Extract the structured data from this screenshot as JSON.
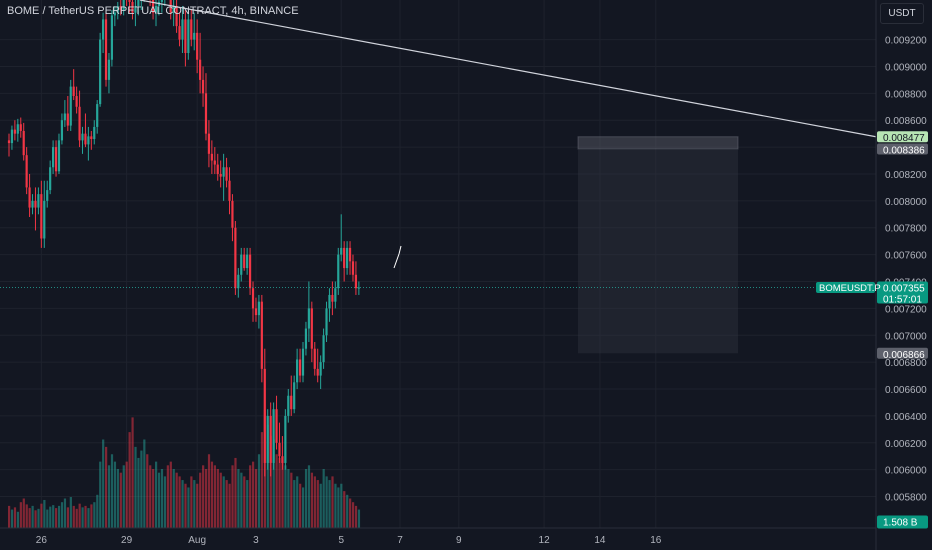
{
  "header": {
    "title": "BOME / TetherUS PERPETUAL CONTRACT, 4h, BINANCE",
    "currency": "USDT"
  },
  "colors": {
    "background": "#131722",
    "up": "#26a69a",
    "down": "#f23645",
    "grid": "#1e222d",
    "text": "#b2b5be",
    "trendline": "#d1d4dc",
    "tag_green": "#089981",
    "tag_gray": "#5d606b",
    "tag_light_green": "#b7e5b4"
  },
  "tags": {
    "symbol": "BOMEUSDT.P",
    "last_price": "0.007355",
    "countdown": "01:57:01",
    "trend_price": "0.008477",
    "target_price": "0.008386",
    "stop_price": "0.006866",
    "volume": "1.508 B"
  },
  "chart_data": {
    "type": "candlestick",
    "title": "BOME / TetherUS PERPETUAL CONTRACT, 4h, BINANCE",
    "y_axis": {
      "side": "right",
      "range": [
        0.0057,
        0.00942
      ],
      "ticks": [
        "0.009200",
        "0.009000",
        "0.008800",
        "0.008600",
        "0.008400",
        "0.008200",
        "0.008000",
        "0.007800",
        "0.007600",
        "0.007400",
        "0.007200",
        "0.007000",
        "0.006800",
        "0.006600",
        "0.006400",
        "0.006200",
        "0.006000",
        "0.005800"
      ]
    },
    "x_axis": {
      "ticks": [
        {
          "label": "26",
          "bar": 11
        },
        {
          "label": "29",
          "bar": 40
        },
        {
          "label": "Aug",
          "bar": 64
        },
        {
          "label": "3",
          "bar": 84
        },
        {
          "label": "5",
          "bar": 113
        },
        {
          "label": "7",
          "bar": 133
        },
        {
          "label": "9",
          "bar": 153
        },
        {
          "label": "12",
          "bar": 182
        },
        {
          "label": "14",
          "bar": 201
        },
        {
          "label": "16",
          "bar": 220
        }
      ]
    },
    "ohlc": [
      [
        0.00845,
        0.0085,
        0.00833,
        0.00843
      ],
      [
        0.00843,
        0.00856,
        0.00838,
        0.00853
      ],
      [
        0.00853,
        0.0086,
        0.00845,
        0.0085
      ],
      [
        0.0085,
        0.00861,
        0.00844,
        0.00857
      ],
      [
        0.00857,
        0.00862,
        0.00847,
        0.00852
      ],
      [
        0.00852,
        0.00858,
        0.0083,
        0.00834
      ],
      [
        0.00834,
        0.0084,
        0.00805,
        0.0081
      ],
      [
        0.0081,
        0.0082,
        0.00788,
        0.00795
      ],
      [
        0.00795,
        0.00805,
        0.0079,
        0.008
      ],
      [
        0.008,
        0.0081,
        0.00778,
        0.00795
      ],
      [
        0.00795,
        0.0081,
        0.0079,
        0.00805
      ],
      [
        0.00805,
        0.00815,
        0.00765,
        0.00772
      ],
      [
        0.00772,
        0.00815,
        0.00765,
        0.008
      ],
      [
        0.008,
        0.00815,
        0.00795,
        0.00808
      ],
      [
        0.00808,
        0.0083,
        0.00805,
        0.00825
      ],
      [
        0.00825,
        0.00845,
        0.0082,
        0.0084
      ],
      [
        0.0084,
        0.00845,
        0.00818,
        0.00822
      ],
      [
        0.00822,
        0.0085,
        0.0082,
        0.00845
      ],
      [
        0.00845,
        0.00865,
        0.00842,
        0.0086
      ],
      [
        0.0086,
        0.00875,
        0.00855,
        0.00865
      ],
      [
        0.00865,
        0.00878,
        0.00852,
        0.00856
      ],
      [
        0.00856,
        0.0089,
        0.00852,
        0.00885
      ],
      [
        0.00885,
        0.00898,
        0.00875,
        0.00878
      ],
      [
        0.00878,
        0.00885,
        0.00865,
        0.0087
      ],
      [
        0.0087,
        0.00882,
        0.0084,
        0.00845
      ],
      [
        0.00845,
        0.00855,
        0.00835,
        0.0085
      ],
      [
        0.0085,
        0.00865,
        0.0084,
        0.00842
      ],
      [
        0.00842,
        0.00855,
        0.0083,
        0.00848
      ],
      [
        0.00848,
        0.00852,
        0.00838,
        0.00846
      ],
      [
        0.00846,
        0.0086,
        0.00842,
        0.00855
      ],
      [
        0.00855,
        0.00875,
        0.0085,
        0.00872
      ],
      [
        0.00872,
        0.00925,
        0.0087,
        0.0092
      ],
      [
        0.0092,
        0.0094,
        0.0091,
        0.00935
      ],
      [
        0.00935,
        0.00942,
        0.00885,
        0.0089
      ],
      [
        0.0089,
        0.0091,
        0.0088,
        0.00905
      ],
      [
        0.00905,
        0.00942,
        0.009,
        0.00938
      ],
      [
        0.00938,
        0.00945,
        0.0093,
        0.0094
      ],
      [
        0.0094,
        0.00948,
        0.00935,
        0.00945
      ],
      [
        0.00945,
        0.0095,
        0.00938,
        0.00942
      ],
      [
        0.00942,
        0.0096,
        0.00938,
        0.00955
      ],
      [
        0.00955,
        0.00965,
        0.00945,
        0.0095
      ],
      [
        0.0095,
        0.0096,
        0.0094,
        0.00948
      ],
      [
        0.00948,
        0.00955,
        0.00935,
        0.0094
      ],
      [
        0.0094,
        0.0095,
        0.0093,
        0.00945
      ],
      [
        0.00945,
        0.00955,
        0.00938,
        0.0095
      ],
      [
        0.0095,
        0.0096,
        0.00942,
        0.00955
      ],
      [
        0.00955,
        0.00965,
        0.00948,
        0.0096
      ],
      [
        0.0096,
        0.0097,
        0.0095,
        0.00955
      ],
      [
        0.00955,
        0.00965,
        0.00945,
        0.0095
      ],
      [
        0.0095,
        0.00958,
        0.00935,
        0.0094
      ],
      [
        0.0094,
        0.0095,
        0.0093,
        0.00945
      ],
      [
        0.00945,
        0.00955,
        0.00938,
        0.00948
      ],
      [
        0.00948,
        0.0096,
        0.0094,
        0.00952
      ],
      [
        0.00952,
        0.00965,
        0.00945,
        0.0096
      ],
      [
        0.0096,
        0.0097,
        0.0095,
        0.00955
      ],
      [
        0.00955,
        0.0096,
        0.00935,
        0.0094
      ],
      [
        0.0094,
        0.0095,
        0.0093,
        0.00945
      ],
      [
        0.00945,
        0.00955,
        0.00925,
        0.0093
      ],
      [
        0.0093,
        0.0094,
        0.00915,
        0.0092
      ],
      [
        0.0092,
        0.00945,
        0.0091,
        0.00935
      ],
      [
        0.00935,
        0.00942,
        0.009,
        0.0091
      ],
      [
        0.0091,
        0.00942,
        0.00905,
        0.00935
      ],
      [
        0.00935,
        0.00942,
        0.00915,
        0.0092
      ],
      [
        0.0092,
        0.0094,
        0.00912,
        0.00925
      ],
      [
        0.00925,
        0.00935,
        0.00895,
        0.00905
      ],
      [
        0.00905,
        0.00925,
        0.0088,
        0.0089
      ],
      [
        0.0089,
        0.009,
        0.0087,
        0.0088
      ],
      [
        0.0088,
        0.00895,
        0.00845,
        0.0085
      ],
      [
        0.0085,
        0.0086,
        0.00825,
        0.00835
      ],
      [
        0.00835,
        0.00845,
        0.0082,
        0.0083
      ],
      [
        0.0083,
        0.0084,
        0.0082,
        0.00827
      ],
      [
        0.00827,
        0.00835,
        0.00815,
        0.0082
      ],
      [
        0.0082,
        0.0083,
        0.0081,
        0.00818
      ],
      [
        0.00818,
        0.00835,
        0.008,
        0.00825
      ],
      [
        0.00825,
        0.00832,
        0.0081,
        0.00815
      ],
      [
        0.00815,
        0.00825,
        0.0079,
        0.008
      ],
      [
        0.008,
        0.00805,
        0.0077,
        0.0078
      ],
      [
        0.0078,
        0.00785,
        0.0073,
        0.00735
      ],
      [
        0.00735,
        0.0075,
        0.00728,
        0.00745
      ],
      [
        0.00745,
        0.00765,
        0.0074,
        0.0076
      ],
      [
        0.0076,
        0.00765,
        0.00748,
        0.0075
      ],
      [
        0.0075,
        0.00765,
        0.00745,
        0.0076
      ],
      [
        0.0076,
        0.00765,
        0.0073,
        0.00735
      ],
      [
        0.00735,
        0.0074,
        0.0071,
        0.0072
      ],
      [
        0.0072,
        0.00728,
        0.0071,
        0.00715
      ],
      [
        0.00715,
        0.0073,
        0.00705,
        0.00725
      ],
      [
        0.00725,
        0.0073,
        0.00665,
        0.00675
      ],
      [
        0.00675,
        0.0069,
        0.00595,
        0.00605
      ],
      [
        0.00605,
        0.00645,
        0.006,
        0.0064
      ],
      [
        0.0064,
        0.0065,
        0.00595,
        0.00605
      ],
      [
        0.00605,
        0.0065,
        0.006,
        0.00645
      ],
      [
        0.00645,
        0.00655,
        0.00615,
        0.0062
      ],
      [
        0.0062,
        0.00635,
        0.00605,
        0.0061
      ],
      [
        0.0061,
        0.00625,
        0.006,
        0.00605
      ],
      [
        0.00605,
        0.00645,
        0.006,
        0.0064
      ],
      [
        0.0064,
        0.0066,
        0.00635,
        0.00655
      ],
      [
        0.00655,
        0.0067,
        0.0064,
        0.00645
      ],
      [
        0.00645,
        0.0067,
        0.00642,
        0.00665
      ],
      [
        0.00665,
        0.0069,
        0.0066,
        0.00682
      ],
      [
        0.00682,
        0.0069,
        0.00665,
        0.0067
      ],
      [
        0.0067,
        0.00695,
        0.00665,
        0.0069
      ],
      [
        0.0069,
        0.0071,
        0.00685,
        0.00705
      ],
      [
        0.00705,
        0.0074,
        0.00695,
        0.0072
      ],
      [
        0.0072,
        0.00725,
        0.0068,
        0.0069
      ],
      [
        0.0069,
        0.00695,
        0.0067,
        0.00675
      ],
      [
        0.00675,
        0.0069,
        0.00665,
        0.0067
      ],
      [
        0.0067,
        0.00685,
        0.0066,
        0.0068
      ],
      [
        0.0068,
        0.00705,
        0.00675,
        0.007
      ],
      [
        0.007,
        0.00725,
        0.00695,
        0.0072
      ],
      [
        0.0072,
        0.00735,
        0.0071,
        0.0073
      ],
      [
        0.0073,
        0.0074,
        0.00715,
        0.00725
      ],
      [
        0.00725,
        0.0074,
        0.0072,
        0.00735
      ],
      [
        0.00735,
        0.00765,
        0.0073,
        0.0076
      ],
      [
        0.0076,
        0.0079,
        0.00755,
        0.00765
      ],
      [
        0.00765,
        0.0077,
        0.0074,
        0.0075
      ],
      [
        0.0075,
        0.0077,
        0.00745,
        0.00765
      ],
      [
        0.00765,
        0.0077,
        0.00745,
        0.00755
      ],
      [
        0.00755,
        0.0076,
        0.0074,
        0.00745
      ],
      [
        0.00745,
        0.00755,
        0.0073,
        0.00735
      ],
      [
        0.00735,
        0.0074,
        0.0073,
        0.007355
      ]
    ],
    "volume": [
      0.3,
      0.25,
      0.28,
      0.22,
      0.35,
      0.4,
      0.32,
      0.27,
      0.3,
      0.24,
      0.26,
      0.33,
      0.38,
      0.25,
      0.29,
      0.31,
      0.27,
      0.3,
      0.35,
      0.4,
      0.28,
      0.42,
      0.3,
      0.26,
      0.33,
      0.28,
      0.3,
      0.27,
      0.32,
      0.35,
      0.45,
      0.9,
      1.2,
      1.1,
      0.85,
      1.0,
      0.9,
      0.8,
      0.75,
      0.85,
      0.9,
      1.3,
      1.5,
      1.1,
      0.95,
      1.05,
      1.2,
      1.0,
      0.85,
      0.8,
      0.9,
      0.75,
      0.8,
      0.7,
      0.85,
      0.9,
      0.8,
      0.75,
      0.7,
      0.65,
      0.6,
      0.55,
      0.7,
      0.65,
      0.6,
      0.75,
      0.85,
      0.8,
      1.0,
      0.9,
      0.85,
      0.8,
      0.75,
      0.7,
      0.65,
      0.6,
      0.85,
      0.95,
      0.8,
      0.75,
      0.7,
      0.65,
      0.85,
      0.9,
      0.8,
      1.0,
      1.3,
      1.6,
      1.4,
      1.25,
      1.2,
      1.0,
      0.95,
      0.9,
      0.85,
      0.8,
      0.75,
      0.65,
      0.7,
      0.6,
      0.55,
      0.8,
      0.85,
      0.75,
      0.7,
      0.65,
      0.6,
      0.8,
      0.7,
      0.65,
      0.7,
      0.6,
      0.55,
      0.6,
      0.5,
      0.45,
      0.4,
      0.35,
      0.3,
      0.25
    ]
  }
}
